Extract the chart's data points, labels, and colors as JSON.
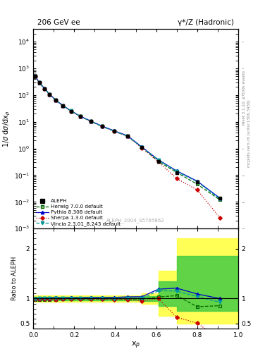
{
  "title_left": "206 GeV ee",
  "title_right": "γ*/Z (Hadronic)",
  "ylabel_main": "1/σ dσ/dxₚ",
  "ylabel_ratio": "Ratio to ALEPH",
  "xlabel": "xₚ",
  "watermark": "ALEPH_2004_S5765862",
  "right_label1": "Rivet 3.1.10, ≥ 500k events",
  "right_label2": "mcplots.cern.ch [arXiv:1306.3436]",
  "xp": [
    0.01,
    0.03,
    0.055,
    0.08,
    0.11,
    0.145,
    0.185,
    0.23,
    0.28,
    0.335,
    0.395,
    0.46,
    0.53,
    0.61,
    0.7,
    0.8,
    0.91
  ],
  "aleph_y": [
    500,
    290,
    175,
    105,
    64,
    40,
    25,
    16,
    10.5,
    6.8,
    4.5,
    2.9,
    1.1,
    0.32,
    0.12,
    0.055,
    0.014
  ],
  "aleph_yerr": [
    25,
    14,
    9,
    5,
    3,
    2,
    1.2,
    0.8,
    0.5,
    0.35,
    0.22,
    0.15,
    0.06,
    0.02,
    0.007,
    0.003,
    0.001
  ],
  "herwig_y": [
    490,
    285,
    172,
    103,
    63,
    39.5,
    24.8,
    15.8,
    10.4,
    6.75,
    4.45,
    2.88,
    1.09,
    0.33,
    0.127,
    0.046,
    0.012
  ],
  "pythia_y": [
    500,
    292,
    177,
    106,
    65,
    40.5,
    25.5,
    16.2,
    10.7,
    6.95,
    4.6,
    3.0,
    1.14,
    0.38,
    0.145,
    0.06,
    0.014
  ],
  "sherpa_y": [
    498,
    288,
    174,
    104,
    63,
    39.8,
    24.9,
    15.9,
    10.4,
    6.72,
    4.42,
    2.85,
    1.05,
    0.32,
    0.075,
    0.028,
    0.0026
  ],
  "vincia_y": [
    498,
    290,
    175,
    105,
    64,
    40.2,
    25.2,
    16.0,
    10.5,
    6.8,
    4.48,
    2.92,
    1.1,
    0.37,
    0.138,
    0.057,
    0.013
  ],
  "colors": {
    "aleph": "#000000",
    "herwig": "#006600",
    "pythia": "#0000cc",
    "sherpa": "#cc0000",
    "vincia": "#009999"
  },
  "band_x": [
    0.0,
    0.46,
    0.53,
    0.61,
    0.7,
    0.8,
    0.91,
    1.01
  ],
  "band_yup": [
    1.06,
    1.06,
    1.1,
    1.55,
    2.2,
    2.2,
    2.2,
    2.2
  ],
  "band_ydn": [
    0.94,
    0.94,
    0.9,
    0.65,
    0.5,
    0.5,
    0.5,
    0.5
  ],
  "band_gup": [
    1.03,
    1.03,
    1.05,
    1.35,
    1.85,
    1.85,
    1.85,
    1.85
  ],
  "band_gdn": [
    0.97,
    0.97,
    0.95,
    0.85,
    0.75,
    0.75,
    0.75,
    0.75
  ],
  "xlim": [
    0,
    1
  ],
  "ylim_main": [
    0.001,
    30000.0
  ],
  "ylim_ratio": [
    0.4,
    2.4
  ],
  "ratio_yticks": [
    0.5,
    1.0,
    2.0
  ],
  "ratio_yticklabels": [
    "0.5",
    "1",
    "2"
  ]
}
